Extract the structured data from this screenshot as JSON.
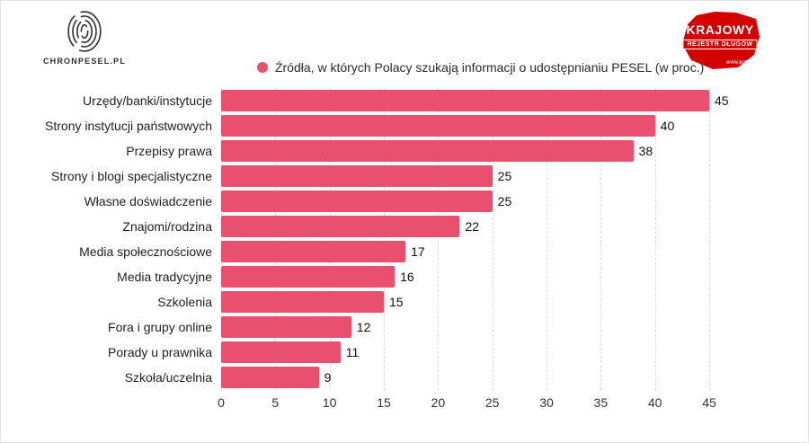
{
  "header": {
    "left_logo": {
      "brand": "CHRONPESEL.PL"
    },
    "right_logo": {
      "title": "KRAJOWY",
      "subtitle": "REJESTR DŁUGÓW",
      "url": "www.krd.pl"
    }
  },
  "legend": {
    "label": "Źródła, w których Polacy szukają informacji o udostępnianiu PESEL (w proc.)"
  },
  "chart_data": {
    "type": "bar",
    "orientation": "horizontal",
    "title": "Źródła, w których Polacy szukają informacji o udostępnianiu PESEL (w proc.)",
    "categories": [
      "Urzędy/banki/instytucje",
      "Strony instytucji państwowych",
      "Przepisy prawa",
      "Strony i blogi specjalistyczne",
      "Własne doświadczenie",
      "Znajomi/rodzina",
      "Media społecznościowe",
      "Media tradycyjne",
      "Szkolenia",
      "Fora i grupy online",
      "Porady u prawnika",
      "Szkoła/uczelnia"
    ],
    "values": [
      45,
      40,
      38,
      25,
      25,
      22,
      17,
      16,
      15,
      12,
      11,
      9
    ],
    "xlabel": "",
    "ylabel": "",
    "xlim": [
      0,
      45
    ],
    "xticks": [
      0,
      5,
      10,
      15,
      20,
      25,
      30,
      35,
      40,
      45
    ],
    "grid": true,
    "legend_position": "top",
    "bar_color": "#e9506f",
    "logo_red": "#d40000"
  }
}
